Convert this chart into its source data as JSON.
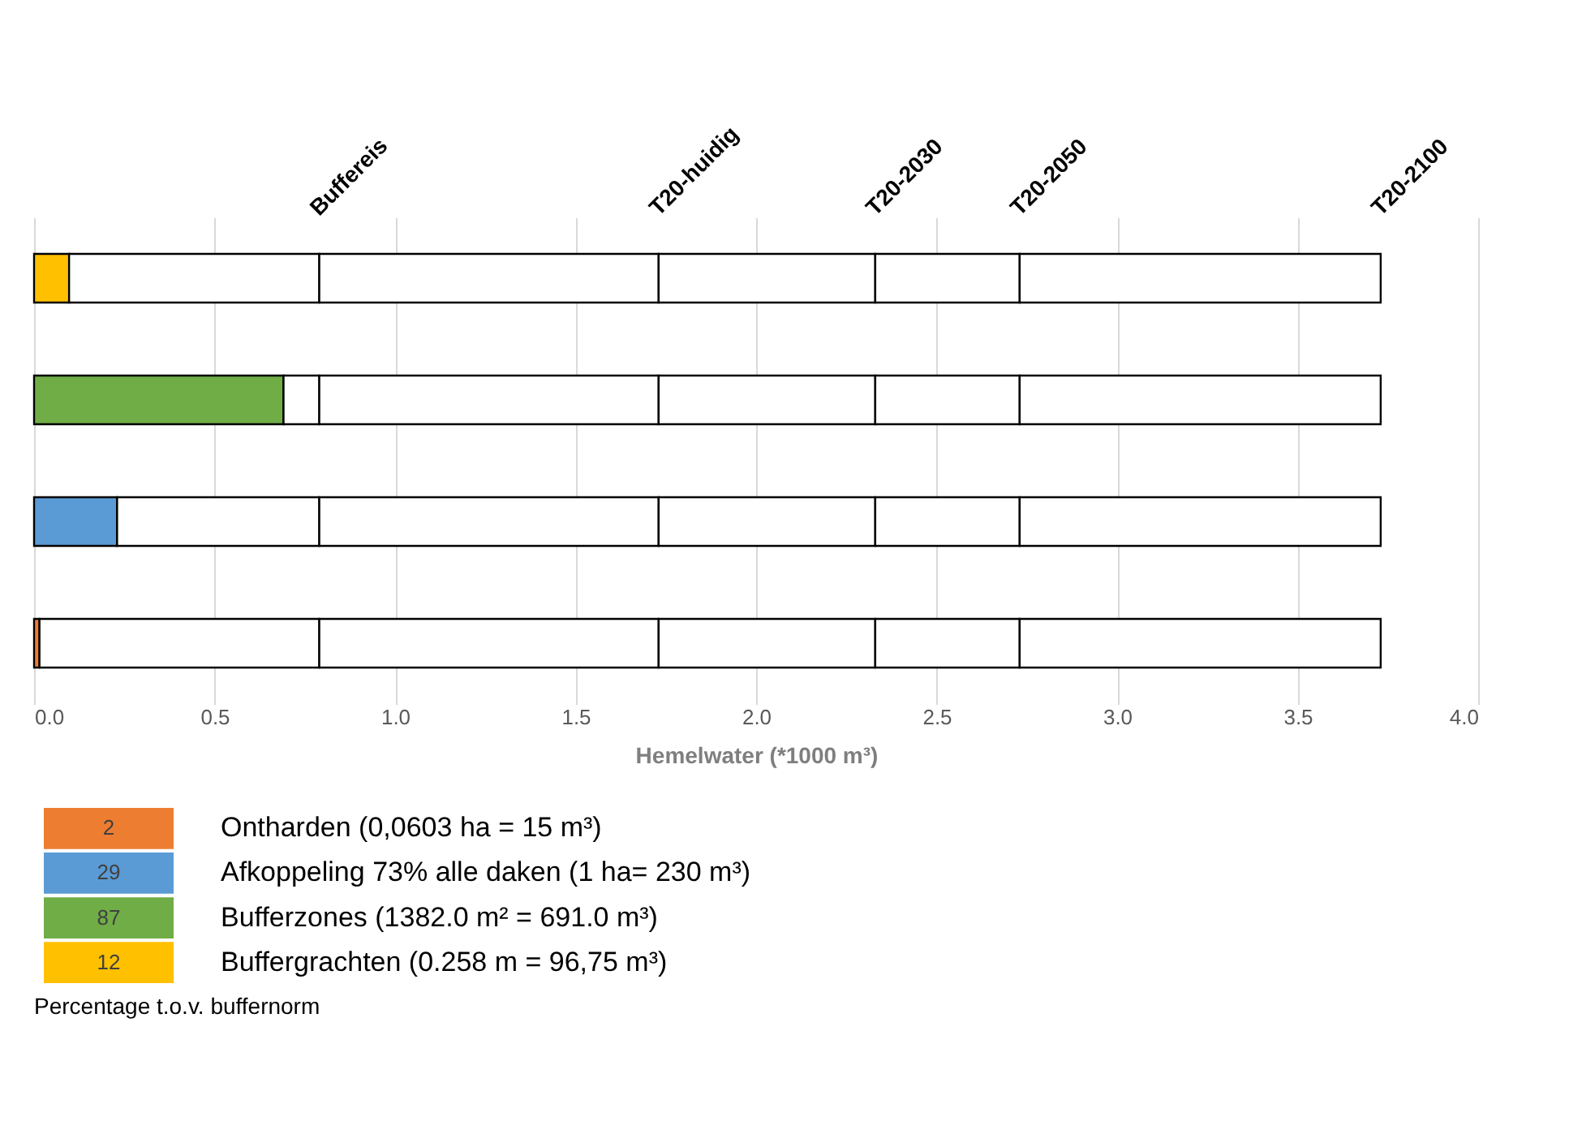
{
  "chart_data": {
    "type": "bar",
    "orientation": "horizontal",
    "stacked": true,
    "xlabel": "Hemelwater (*1000 m³)",
    "legend_title": "Percentage t.o.v. buffernorm",
    "categories": [
      null,
      null,
      null,
      null
    ],
    "series": [
      {
        "name": "Ontharden (0,0603 ha  = 15 m³)",
        "color": "#ed7d31",
        "values": [
          null,
          null,
          null,
          0.015
        ]
      },
      {
        "name": "Afkoppeling 73% alle daken (1 ha= 230 m³)",
        "color": "#5b9bd5",
        "values": [
          null,
          null,
          0.23,
          null
        ]
      },
      {
        "name": "Bufferzones (1382.0 m²  = 691.0 m³)",
        "color": "#70ad47",
        "values": [
          null,
          0.691,
          null,
          null
        ]
      },
      {
        "name": "Buffergrachten (0.258 m  = 96,75 m³)",
        "color": "#ffc000",
        "values": [
          0.097,
          null,
          null,
          null
        ]
      },
      {
        "color": "#ffffff",
        "values": [
          0.693,
          0.099,
          0.56,
          0.775
        ]
      },
      {
        "color": "#ffffff",
        "values": [
          0.94,
          0.94,
          0.94,
          0.94
        ]
      },
      {
        "color": "#ffffff",
        "values": [
          0.6,
          0.6,
          0.6,
          0.6
        ]
      },
      {
        "color": "#ffffff",
        "values": [
          0.4,
          0.4,
          0.4,
          0.4
        ]
      },
      {
        "color": "#ffffff",
        "values": [
          1.0,
          1.0,
          1.0,
          1.0
        ]
      }
    ],
    "xlim": [
      0,
      4
    ],
    "xticks": [
      {
        "value": 0,
        "label": "0.0"
      },
      {
        "value": 0.5,
        "label": "0.5"
      },
      {
        "value": 1,
        "label": "1.0"
      },
      {
        "value": 1.5,
        "label": "1.5"
      },
      {
        "value": 2,
        "label": "2.0"
      },
      {
        "value": 2.5,
        "label": "2.5"
      },
      {
        "value": 3,
        "label": "3.0"
      },
      {
        "value": 3.5,
        "label": "3.5"
      },
      {
        "value": 4,
        "label": "4.0"
      }
    ],
    "annotations": [
      "Buffereis",
      "T20-huidig",
      "T20-2030",
      "T20-2050",
      "T20-2100",
      "2",
      "29",
      "87",
      "12"
    ],
    "grid": "x",
    "tick_labels": "x",
    "legend": "bottom"
  }
}
